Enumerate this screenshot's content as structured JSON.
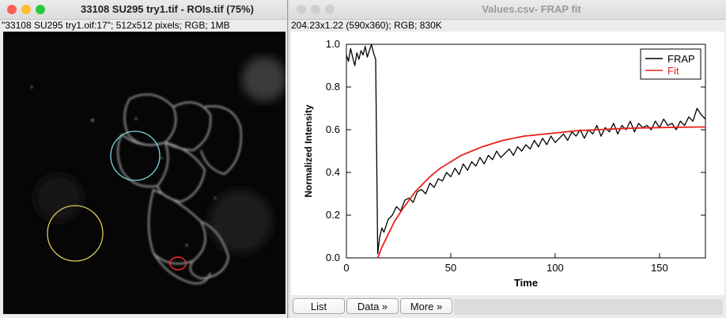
{
  "colors": {
    "close": "#fe5f57",
    "minimize": "#febc2e",
    "maximize": "#28c840",
    "inactive_light": "#cfcfcf",
    "roi_cyan": "#7fd6e0",
    "roi_yellow": "#d8c85a",
    "roi_red": "#ff2a2a",
    "frap": "#000000",
    "fit": "#e8231b"
  },
  "left_window": {
    "title": "33108 SU295 try1.tif - ROIs.tif (75%)",
    "info": "\"33108 SU295 try1.oif:17\"; 512x512 pixels; RGB; 1MB"
  },
  "right_window": {
    "title": "Values.csv- FRAP fit",
    "info": "204.23x1.22    (590x360); RGB; 830K",
    "buttons": {
      "list": "List",
      "data": "Data »",
      "more": "More »"
    }
  },
  "chart_data": {
    "type": "line",
    "xlabel": "Time",
    "ylabel": "Normalized Intensity",
    "xlim": [
      0,
      172
    ],
    "ylim": [
      0,
      1.0
    ],
    "x_ticks": [
      0,
      50,
      100,
      150
    ],
    "y_ticks": [
      0.0,
      0.2,
      0.4,
      0.6,
      0.8,
      1.0
    ],
    "x_tick_labels": [
      "0",
      "50",
      "100",
      "150"
    ],
    "y_tick_labels": [
      "0.0",
      "0.2",
      "0.4",
      "0.6",
      "0.8",
      "1.0"
    ],
    "legend": {
      "position": "top-right",
      "entries": [
        "FRAP",
        "Fit"
      ]
    },
    "series": [
      {
        "name": "FRAP",
        "x": [
          0,
          1,
          2,
          3,
          4,
          5,
          6,
          7,
          8,
          9,
          10,
          11,
          12,
          13,
          14,
          15,
          16,
          17,
          18,
          20,
          22,
          24,
          26,
          28,
          30,
          32,
          34,
          36,
          38,
          40,
          42,
          44,
          46,
          48,
          50,
          52,
          54,
          56,
          58,
          60,
          62,
          64,
          66,
          68,
          70,
          72,
          74,
          76,
          78,
          80,
          82,
          84,
          86,
          88,
          90,
          92,
          94,
          96,
          98,
          100,
          102,
          104,
          106,
          108,
          110,
          112,
          114,
          116,
          118,
          120,
          122,
          124,
          126,
          128,
          130,
          132,
          134,
          136,
          138,
          140,
          142,
          144,
          146,
          148,
          150,
          152,
          154,
          156,
          158,
          160,
          162,
          164,
          166,
          168,
          170,
          172
        ],
        "y": [
          0.95,
          0.92,
          0.98,
          0.94,
          0.9,
          0.96,
          0.93,
          0.97,
          0.95,
          0.99,
          0.94,
          0.97,
          1.0,
          0.96,
          0.93,
          0.02,
          0.1,
          0.14,
          0.12,
          0.18,
          0.2,
          0.24,
          0.22,
          0.27,
          0.28,
          0.26,
          0.31,
          0.32,
          0.3,
          0.35,
          0.33,
          0.37,
          0.36,
          0.4,
          0.38,
          0.42,
          0.39,
          0.44,
          0.41,
          0.45,
          0.43,
          0.47,
          0.44,
          0.48,
          0.46,
          0.5,
          0.47,
          0.49,
          0.51,
          0.48,
          0.52,
          0.5,
          0.53,
          0.51,
          0.55,
          0.52,
          0.56,
          0.53,
          0.57,
          0.54,
          0.56,
          0.58,
          0.55,
          0.59,
          0.57,
          0.6,
          0.56,
          0.6,
          0.58,
          0.62,
          0.57,
          0.61,
          0.59,
          0.63,
          0.58,
          0.62,
          0.6,
          0.64,
          0.59,
          0.63,
          0.61,
          0.62,
          0.6,
          0.64,
          0.61,
          0.65,
          0.62,
          0.63,
          0.6,
          0.64,
          0.62,
          0.66,
          0.64,
          0.7,
          0.67,
          0.65
        ]
      },
      {
        "name": "Fit",
        "x": [
          15,
          17,
          19,
          21,
          23,
          25,
          27,
          30,
          33,
          36,
          40,
          45,
          50,
          55,
          60,
          65,
          70,
          75,
          80,
          85,
          90,
          95,
          100,
          110,
          120,
          130,
          140,
          150,
          160,
          172
        ],
        "y": [
          0.0,
          0.05,
          0.09,
          0.13,
          0.17,
          0.2,
          0.23,
          0.27,
          0.31,
          0.34,
          0.38,
          0.42,
          0.45,
          0.48,
          0.5,
          0.52,
          0.535,
          0.55,
          0.56,
          0.57,
          0.575,
          0.58,
          0.585,
          0.595,
          0.6,
          0.605,
          0.608,
          0.61,
          0.612,
          0.613
        ]
      }
    ]
  }
}
